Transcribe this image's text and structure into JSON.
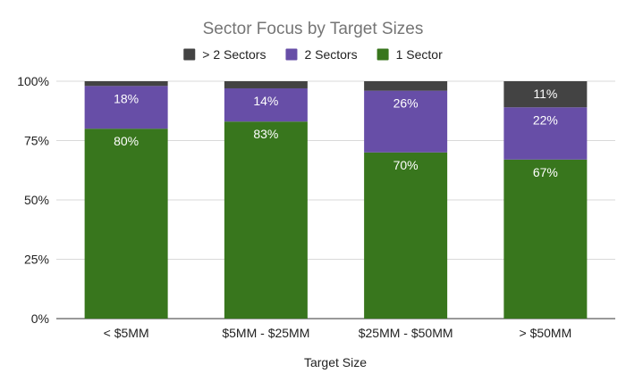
{
  "chart_data": {
    "type": "bar",
    "stacked": true,
    "title": "Sector Focus by Target Sizes",
    "xlabel": "Target Size",
    "ylabel": "",
    "ylim": [
      0,
      100
    ],
    "yticks": [
      "0%",
      "25%",
      "50%",
      "75%",
      "100%"
    ],
    "ytick_values": [
      0,
      25,
      50,
      75,
      100
    ],
    "categories": [
      "< $5MM",
      "$5MM - $25MM",
      "$25MM - $50MM",
      "> $50MM"
    ],
    "legend_position": "top",
    "legend_order": [
      "> 2 Sectors",
      "2 Sectors",
      "1 Sector"
    ],
    "grid": true,
    "series": [
      {
        "name": "1 Sector",
        "color": "#38761d",
        "values": [
          80,
          83,
          70,
          67
        ],
        "labels": [
          "80%",
          "83%",
          "70%",
          "67%"
        ]
      },
      {
        "name": "2 Sectors",
        "color": "#674ea7",
        "values": [
          18,
          14,
          26,
          22
        ],
        "labels": [
          "18%",
          "14%",
          "26%",
          "22%"
        ]
      },
      {
        "name": "> 2 Sectors",
        "color": "#434343",
        "values": [
          2,
          3,
          4,
          11
        ],
        "labels": [
          "",
          "",
          "",
          "11%"
        ]
      }
    ]
  }
}
